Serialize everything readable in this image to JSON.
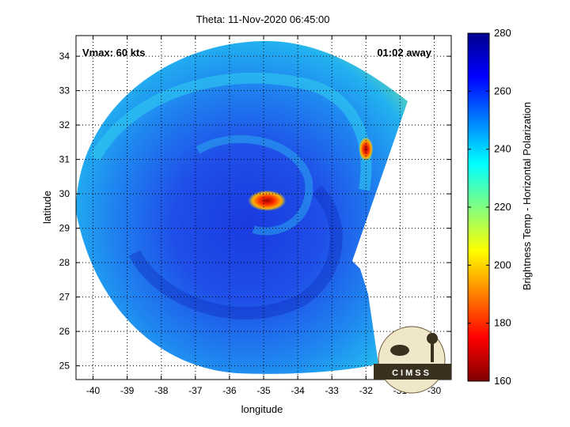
{
  "chart_data": {
    "type": "heatmap",
    "title": "Theta: 11-Nov-2020 06:45:00",
    "xlabel": "longitude",
    "ylabel": "latitude",
    "xlim": [
      -40.5,
      -29.5
    ],
    "ylim": [
      24.6,
      34.6
    ],
    "xticks": [
      -40,
      -39,
      -38,
      -37,
      -36,
      -35,
      -34,
      -33,
      -32,
      -31,
      -30
    ],
    "yticks": [
      25,
      26,
      27,
      28,
      29,
      30,
      31,
      32,
      33,
      34
    ],
    "grid": true,
    "annotations": {
      "vmax": "Vmax: 60 kts",
      "time_away": "01:02 away"
    },
    "colorbar": {
      "label": "Brightness Temp - Horizontal Polarization",
      "min": 160,
      "max": 280,
      "ticks": [
        160,
        180,
        200,
        220,
        240,
        260,
        280
      ]
    },
    "features": [
      {
        "kind": "storm_center",
        "lon": -34.9,
        "lat": 29.8,
        "value": 175
      },
      {
        "kind": "hot_spot",
        "lon": -32.0,
        "lat": 31.3,
        "value": 165
      }
    ],
    "logo_text": "CIMSS"
  }
}
